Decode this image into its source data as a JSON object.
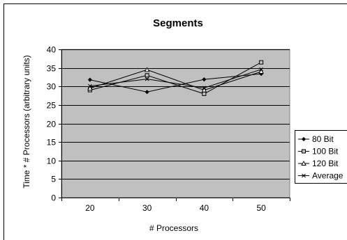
{
  "chart_data": {
    "type": "line",
    "title": "Segments",
    "xlabel": "# Processors",
    "ylabel": "Time * # Processors (arbitrary units)",
    "categories": [
      "20",
      "30",
      "40",
      "50"
    ],
    "ylim": [
      0,
      40
    ],
    "yticks": [
      0,
      5,
      10,
      15,
      20,
      25,
      30,
      35,
      40
    ],
    "grid": true,
    "legend_position": "right",
    "plot_background": "#c0c0c0",
    "series": [
      {
        "name": "80 Bit",
        "marker": "diamond",
        "values": [
          31.8,
          28.5,
          31.9,
          33.4
        ]
      },
      {
        "name": "100 Bit",
        "marker": "square",
        "values": [
          29.0,
          33.0,
          28.0,
          36.5
        ]
      },
      {
        "name": "120 Bit",
        "marker": "triangle",
        "values": [
          29.5,
          34.5,
          29.0,
          34.0
        ]
      },
      {
        "name": "Average",
        "marker": "x",
        "values": [
          30.1,
          32.0,
          29.6,
          34.6
        ]
      }
    ]
  }
}
